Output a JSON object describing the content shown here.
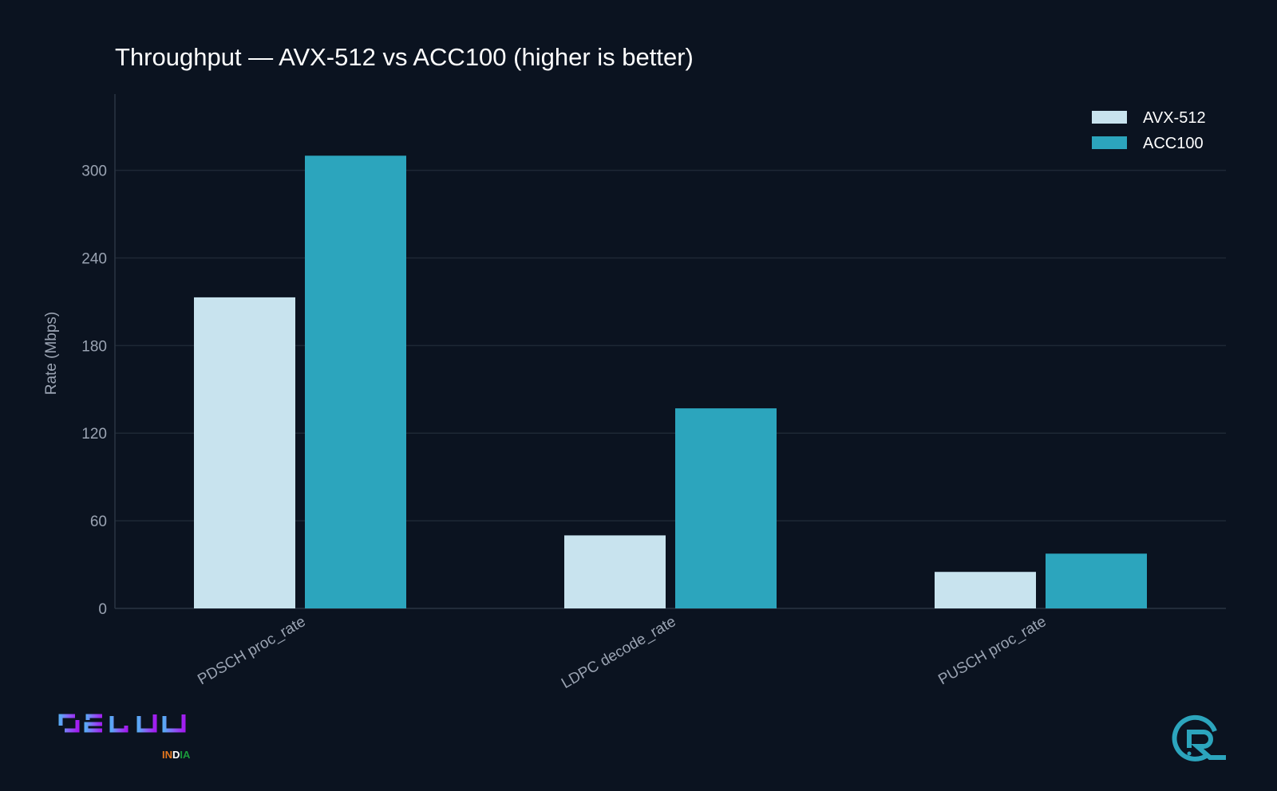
{
  "chart_data": {
    "type": "bar",
    "title": "Throughput — AVX-512 vs ACC100 (higher is better)",
    "xlabel": "",
    "ylabel": "Rate (Mbps)",
    "ylim": [
      0,
      350
    ],
    "yticks": [
      0,
      60,
      120,
      180,
      240,
      300
    ],
    "grid": true,
    "legend_position": "top-right",
    "categories": [
      "PDSCH proc_rate",
      "LDPC decode_rate",
      "PUSCH proc_rate"
    ],
    "series": [
      {
        "name": "AVX-512",
        "color": "#c8e3ee",
        "values": [
          213,
          50,
          25
        ]
      },
      {
        "name": "ACC100",
        "color": "#2ca5bd",
        "values": [
          310,
          137,
          37.5
        ]
      }
    ]
  },
  "logos": {
    "left": {
      "text": "OCUDU",
      "subtext": "INDIA"
    },
    "right": {
      "text": "R"
    }
  },
  "colors": {
    "background": "#0b1320",
    "grid": "#1e2835"
  }
}
